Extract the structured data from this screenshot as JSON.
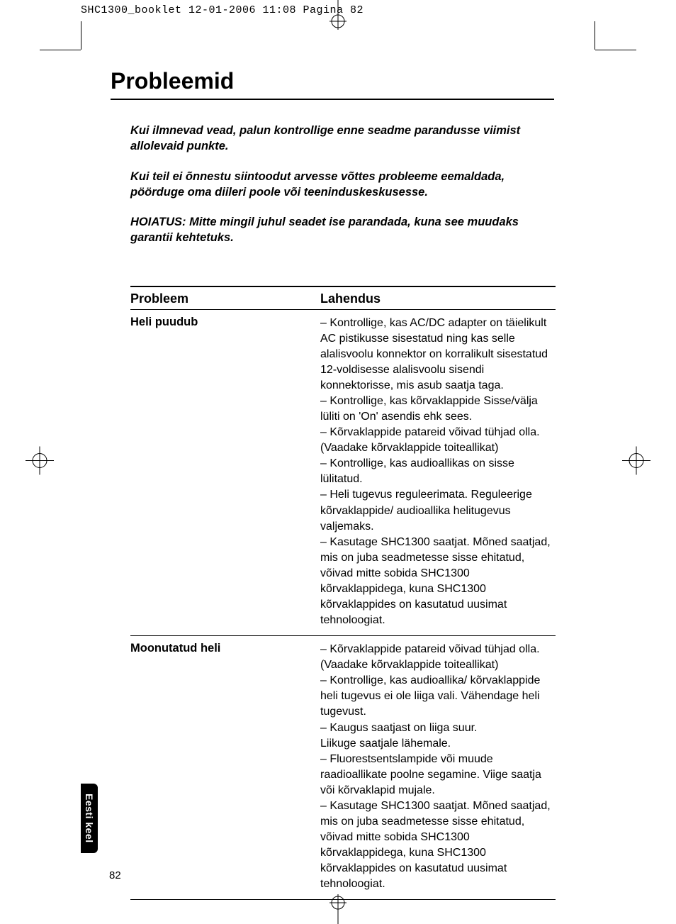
{
  "cropHeader": "SHC1300_booklet  12-01-2006  11:08  Pagina 82",
  "title": "Probleemid",
  "intro": [
    "Kui ilmnevad vead, palun kontrollige enne seadme parandusse viimist allolevaid punkte.",
    "Kui teil ei õnnestu siintoodut arvesse võttes probleeme eemaldada, pöörduge oma diileri poole või teeninduskeskusesse.",
    "HOIATUS: Mitte mingil juhul seadet ise parandada, kuna see muudaks garantii kehtetuks."
  ],
  "headers": {
    "col1": "Probleem",
    "col2": "Lahendus"
  },
  "rows": [
    {
      "problem": "Heli puudub",
      "solution": "– Kontrollige, kas AC/DC adapter on täielikult AC pistikusse sisestatud ning kas selle alalisvoolu konnektor on korralikult sisestatud 12-voldisesse alalisvoolu sisendi konnektorisse, mis asub saatja taga.\n– Kontrollige, kas kõrvaklappide Sisse/välja lüliti on 'On' asendis ehk sees.\n– Kõrvaklappide patareid võivad tühjad olla. (Vaadake kõrvaklappide toiteallikat)\n– Kontrollige, kas audioallikas on sisse lülitatud.\n– Heli tugevus reguleerimata. Reguleerige kõrvaklappide/ audioallika helitugevus valjemaks.\n– Kasutage SHC1300 saatjat. Mõned saatjad, mis on juba seadmetesse sisse ehitatud, võivad mitte sobida SHC1300 kõrvaklappidega, kuna SHC1300 kõrvaklappides on kasutatud uusimat tehnoloogiat."
    },
    {
      "problem": "Moonutatud heli",
      "solution": "– Kõrvaklappide patareid võivad tühjad olla. (Vaadake kõrvaklappide toiteallikat)\n– Kontrollige, kas audioallika/ kõrvaklappide heli tugevus ei ole liiga vali. Vähendage heli tugevust.\n– Kaugus saatjast on liiga suur.\nLiikuge saatjale lähemale.\n– Fluorestsentslampide või muude raadioallikate poolne segamine. Viige saatja või kõrvaklapid mujale.\n– Kasutage SHC1300 saatjat. Mõned saatjad, mis on juba seadmetesse sisse ehitatud, võivad mitte sobida SHC1300 kõrvaklappidega, kuna SHC1300 kõrvaklappides on kasutatud uusimat tehnoloogiat."
    }
  ],
  "sideTab": "Eesti keel",
  "pageNumber": "82"
}
